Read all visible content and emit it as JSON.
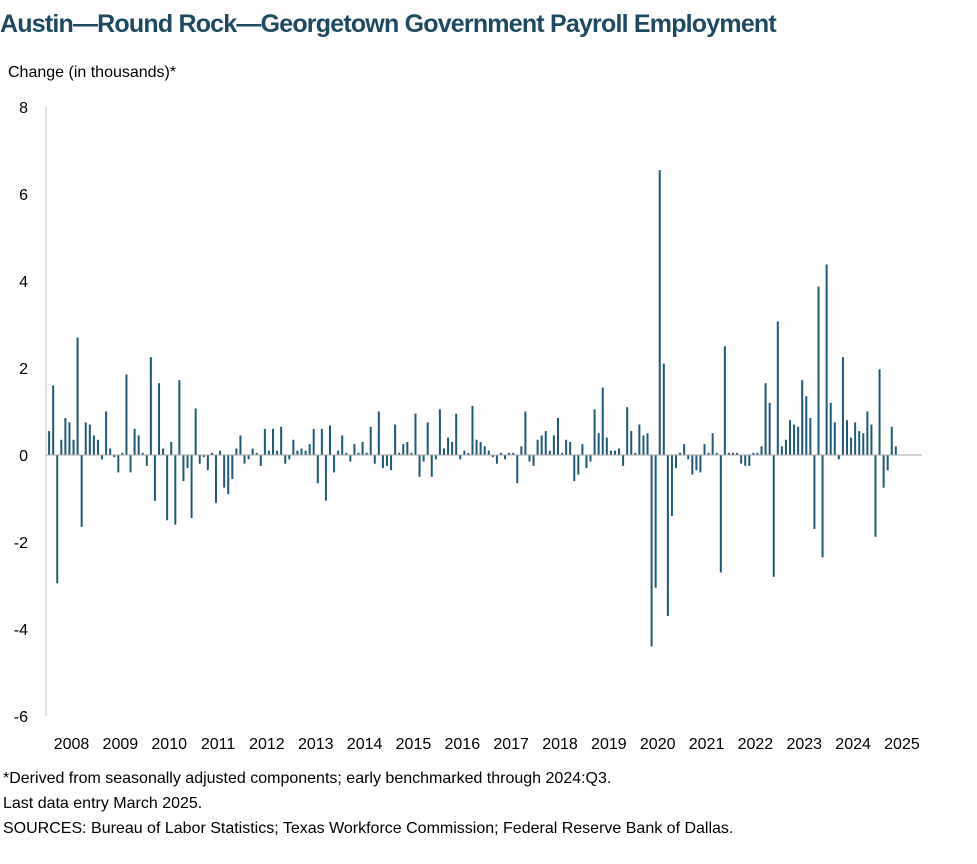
{
  "title": "Austin—Round Rock—Georgetown Government Payroll Employment",
  "notes": [
    "*Derived from seasonally adjusted components; early benchmarked through 2024:Q3.",
    "Last data entry March 2025.",
    "SOURCES: Bureau of Labor Statistics; Texas Workforce Commission; Federal Reserve Bank of Dallas."
  ],
  "chart_data": {
    "type": "bar",
    "ylabel": "Change (in thousands)*",
    "ylim": [
      -6,
      8
    ],
    "yticks": [
      8,
      6,
      4,
      2,
      0,
      -2,
      -4,
      -6
    ],
    "ytick_labels": [
      "8",
      "6",
      "4",
      "2",
      "0",
      "-2",
      "-4",
      "-6"
    ],
    "xtick_labels": [
      "2008",
      "2009",
      "2010",
      "2011",
      "2012",
      "2013",
      "2014",
      "2015",
      "2016",
      "2017",
      "2018",
      "2019",
      "2020",
      "2021",
      "2022",
      "2023",
      "2024",
      "2025"
    ],
    "start": "2008-01",
    "end": "2025-03",
    "color": "#1d5a77",
    "values": [
      0.55,
      1.6,
      -2.95,
      0.35,
      0.85,
      0.75,
      0.35,
      2.7,
      -1.65,
      0.75,
      0.7,
      0.45,
      0.35,
      -0.1,
      1.0,
      0.15,
      -0.05,
      -0.4,
      0.05,
      1.85,
      -0.4,
      0.6,
      0.45,
      0.05,
      -0.25,
      2.25,
      -1.05,
      1.65,
      0.15,
      -1.5,
      0.3,
      -1.6,
      1.72,
      -0.6,
      -0.3,
      -1.45,
      1.07,
      -0.2,
      -0.05,
      -0.35,
      0.05,
      -1.1,
      0.1,
      -0.75,
      -0.9,
      -0.55,
      0.15,
      0.45,
      -0.2,
      -0.1,
      0.15,
      0.05,
      -0.25,
      0.6,
      0.1,
      0.6,
      0.1,
      0.65,
      -0.2,
      -0.1,
      0.35,
      0.1,
      0.15,
      0.1,
      0.25,
      0.6,
      -0.65,
      0.6,
      -1.05,
      0.68,
      -0.4,
      0.1,
      0.45,
      0.05,
      -0.15,
      0.25,
      0.05,
      0.3,
      0.05,
      0.65,
      -0.2,
      1.0,
      -0.3,
      -0.25,
      -0.35,
      0.7,
      0.05,
      0.25,
      0.3,
      0.05,
      0.95,
      -0.5,
      -0.15,
      0.75,
      -0.5,
      -0.1,
      1.05,
      0.15,
      0.4,
      0.3,
      0.95,
      -0.1,
      0.1,
      0.05,
      1.13,
      0.35,
      0.3,
      0.2,
      0.1,
      -0.05,
      -0.2,
      0.05,
      -0.1,
      0.05,
      0.05,
      -0.65,
      0.2,
      1.0,
      -0.15,
      -0.25,
      0.35,
      0.45,
      0.55,
      0.1,
      0.45,
      0.85,
      0.05,
      0.35,
      0.3,
      -0.6,
      -0.45,
      0.25,
      -0.3,
      -0.15,
      1.05,
      0.5,
      1.55,
      0.4,
      0.1,
      0.1,
      0.15,
      -0.25,
      1.1,
      0.55,
      0.05,
      0.7,
      0.45,
      0.5,
      -4.4,
      -3.05,
      6.55,
      2.1,
      -3.7,
      -1.4,
      -0.3,
      0.05,
      0.25,
      -0.1,
      -0.45,
      -0.35,
      -0.4,
      0.25,
      0.05,
      0.5,
      0.05,
      -2.7,
      2.5,
      0.05,
      0.05,
      0.05,
      -0.2,
      -0.25,
      -0.25,
      0.05,
      0.05,
      0.2,
      1.65,
      1.2,
      -2.8,
      3.07,
      0.2,
      0.35,
      0.8,
      0.7,
      0.65,
      1.72,
      1.35,
      0.85,
      -1.7,
      3.87,
      -2.35,
      4.38,
      1.2,
      0.75,
      -0.1,
      2.25,
      0.8,
      0.4,
      0.75,
      0.55,
      0.5,
      1.0,
      0.7,
      -1.88,
      1.97,
      -0.75,
      -0.35,
      0.65,
      0.2
    ]
  }
}
